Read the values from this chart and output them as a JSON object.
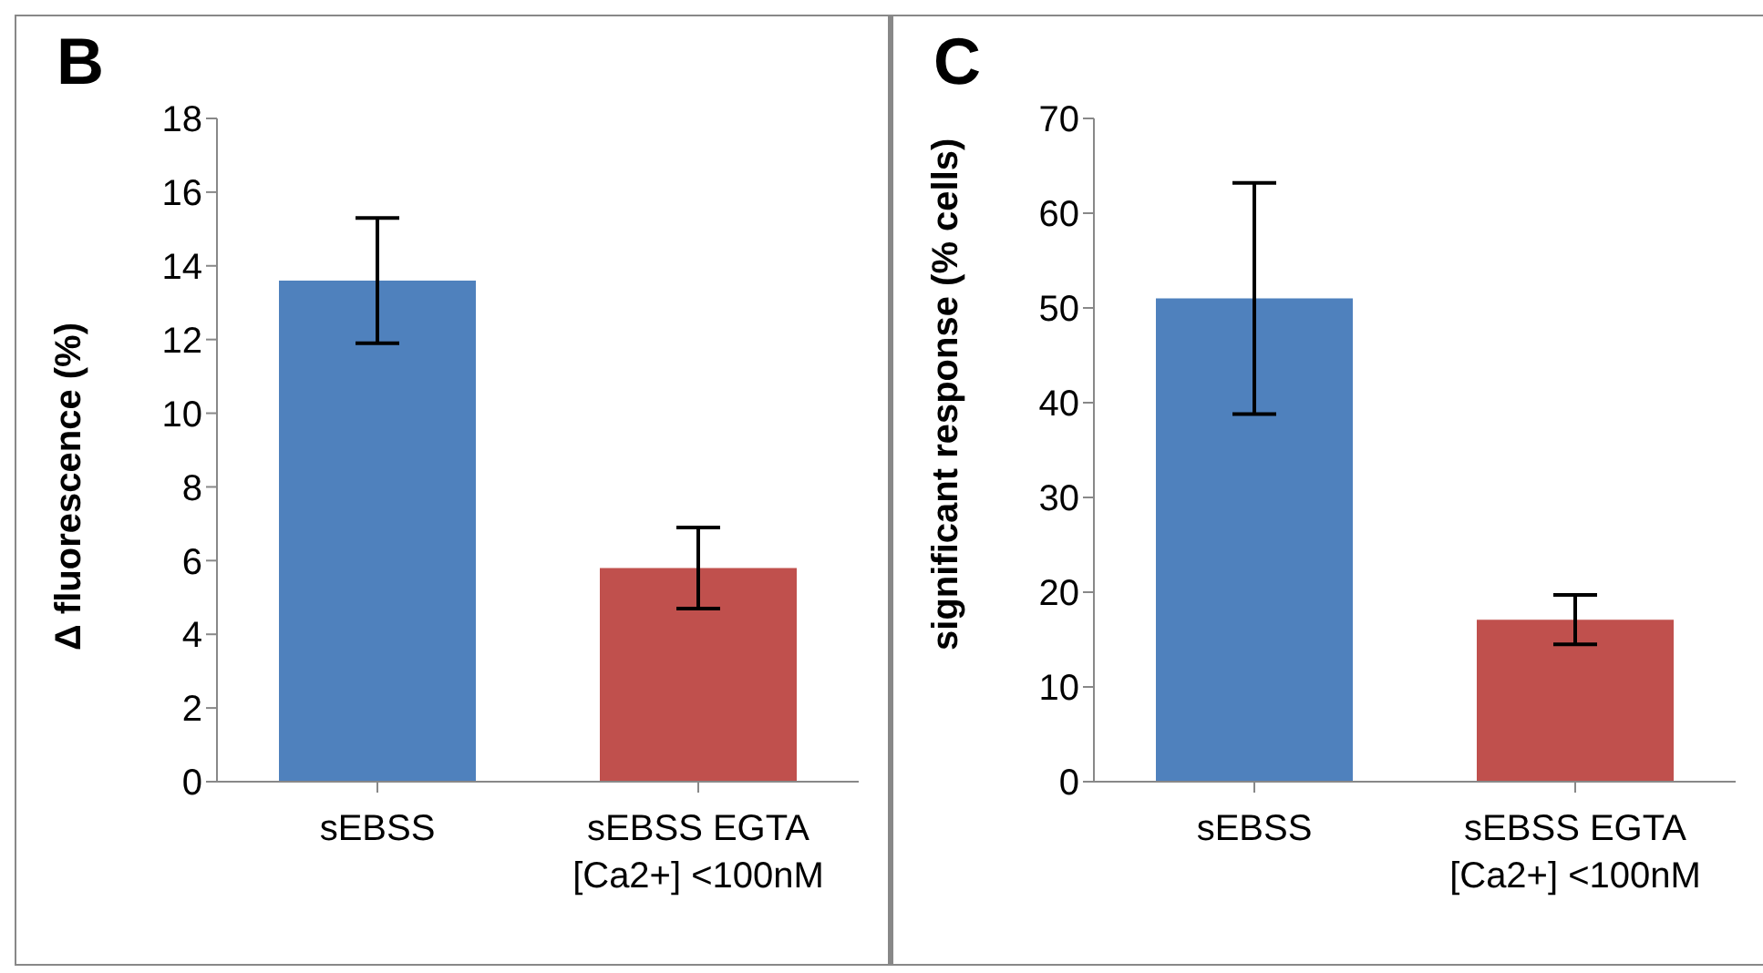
{
  "chart_data": [
    {
      "type": "bar",
      "title": "B",
      "ylabel": "Δ fluorescence (%)",
      "categories": [
        "sEBSS",
        "sEBSS EGTA\n[Ca2+] <100nM"
      ],
      "values": [
        13.6,
        5.8
      ],
      "colors": [
        "#4f81bd",
        "#c0504d"
      ],
      "errors": [
        1.7,
        1.1
      ],
      "ylim": [
        0,
        18
      ],
      "yticks": [
        0,
        2,
        4,
        6,
        8,
        10,
        12,
        14,
        16,
        18
      ],
      "grid": false,
      "legend": false
    },
    {
      "type": "bar",
      "title": "C",
      "ylabel": "significant response (% cells)",
      "categories": [
        "sEBSS",
        "sEBSS EGTA\n[Ca2+] <100nM"
      ],
      "values": [
        51,
        17.1
      ],
      "colors": [
        "#4f81bd",
        "#c0504d"
      ],
      "errors": [
        12.2,
        2.6
      ],
      "ylim": [
        0,
        70
      ],
      "yticks": [
        0,
        10,
        20,
        30,
        40,
        50,
        60,
        70
      ],
      "grid": false,
      "legend": false
    }
  ]
}
